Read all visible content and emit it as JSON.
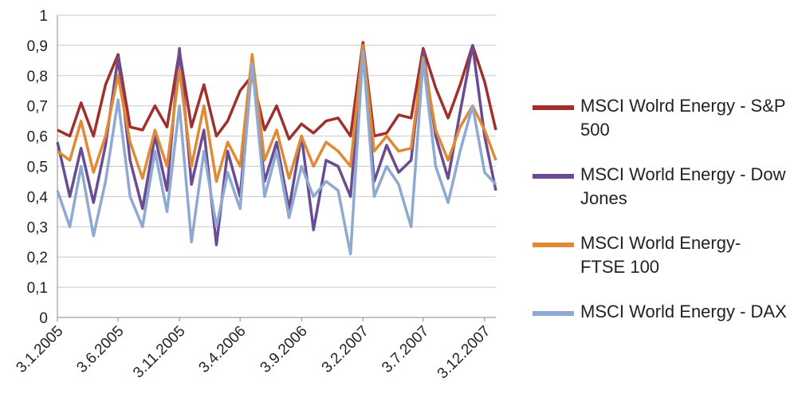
{
  "chart_data": {
    "type": "line",
    "title": "",
    "xlabel": "",
    "ylabel": "",
    "ylim": [
      0,
      1
    ],
    "y_ticks": [
      "0",
      "0,1",
      "0,2",
      "0,3",
      "0,4",
      "0,5",
      "0,6",
      "0,7",
      "0,8",
      "0,9",
      "1"
    ],
    "y_tick_values": [
      0,
      0.1,
      0.2,
      0.3,
      0.4,
      0.5,
      0.6,
      0.7,
      0.8,
      0.9,
      1.0
    ],
    "x_ticks": [
      "3.1.2005",
      "3.6.2005",
      "3.11.2005",
      "3.4.2006",
      "3.9.2006",
      "3.2.2007",
      "3.7.2007",
      "3.12.2007"
    ],
    "x_range": [
      "3.1.2005",
      "31.12.2007"
    ],
    "grid": "horizontal",
    "legend_position": "right",
    "series": [
      {
        "name": "MSCI Wolrd Energy - S&P 500",
        "color": "#A0302E",
        "x": [
          "3.1.2005",
          "3.2.2005",
          "3.3.2005",
          "3.4.2005",
          "3.5.2005",
          "3.6.2005",
          "3.7.2005",
          "3.8.2005",
          "3.9.2005",
          "3.10.2005",
          "3.11.2005",
          "3.12.2005",
          "3.1.2006",
          "3.2.2006",
          "3.3.2006",
          "3.4.2006",
          "3.5.2006",
          "3.6.2006",
          "3.7.2006",
          "3.8.2006",
          "3.9.2006",
          "3.10.2006",
          "3.11.2006",
          "3.12.2006",
          "3.1.2007",
          "3.2.2007",
          "3.3.2007",
          "3.4.2007",
          "3.5.2007",
          "3.6.2007",
          "3.7.2007",
          "3.8.2007",
          "3.9.2007",
          "3.10.2007",
          "3.11.2007",
          "3.12.2007",
          "31.12.2007"
        ],
        "y": [
          0.62,
          0.6,
          0.71,
          0.6,
          0.77,
          0.87,
          0.63,
          0.62,
          0.7,
          0.63,
          0.88,
          0.63,
          0.77,
          0.6,
          0.65,
          0.75,
          0.8,
          0.62,
          0.7,
          0.59,
          0.64,
          0.61,
          0.65,
          0.66,
          0.6,
          0.91,
          0.6,
          0.61,
          0.67,
          0.66,
          0.89,
          0.76,
          0.66,
          0.77,
          0.9,
          0.78,
          0.62
        ]
      },
      {
        "name": "MSCI World Energy - Dow Jones",
        "color": "#6A4C93",
        "x": [
          "3.1.2005",
          "3.2.2005",
          "3.3.2005",
          "3.4.2005",
          "3.5.2005",
          "3.6.2005",
          "3.7.2005",
          "3.8.2005",
          "3.9.2005",
          "3.10.2005",
          "3.11.2005",
          "3.12.2005",
          "3.1.2006",
          "3.2.2006",
          "3.3.2006",
          "3.4.2006",
          "3.5.2006",
          "3.6.2006",
          "3.7.2006",
          "3.8.2006",
          "3.9.2006",
          "3.10.2006",
          "3.11.2006",
          "3.12.2006",
          "3.1.2007",
          "3.2.2007",
          "3.3.2007",
          "3.4.2007",
          "3.5.2007",
          "3.6.2007",
          "3.7.2007",
          "3.8.2007",
          "3.9.2007",
          "3.10.2007",
          "3.11.2007",
          "3.12.2007",
          "31.12.2007"
        ],
        "y": [
          0.58,
          0.4,
          0.56,
          0.38,
          0.57,
          0.86,
          0.52,
          0.36,
          0.6,
          0.42,
          0.89,
          0.44,
          0.62,
          0.24,
          0.55,
          0.4,
          0.85,
          0.45,
          0.58,
          0.36,
          0.6,
          0.29,
          0.52,
          0.5,
          0.4,
          0.9,
          0.45,
          0.57,
          0.48,
          0.52,
          0.88,
          0.6,
          0.46,
          0.68,
          0.9,
          0.6,
          0.42
        ]
      },
      {
        "name": "MSCI World Energy- FTSE 100",
        "color": "#E08A35",
        "x": [
          "3.1.2005",
          "3.2.2005",
          "3.3.2005",
          "3.4.2005",
          "3.5.2005",
          "3.6.2005",
          "3.7.2005",
          "3.8.2005",
          "3.9.2005",
          "3.10.2005",
          "3.11.2005",
          "3.12.2005",
          "3.1.2006",
          "3.2.2006",
          "3.3.2006",
          "3.4.2006",
          "3.5.2006",
          "3.6.2006",
          "3.7.2006",
          "3.8.2006",
          "3.9.2006",
          "3.10.2006",
          "3.11.2006",
          "3.12.2006",
          "3.1.2007",
          "3.2.2007",
          "3.3.2007",
          "3.4.2007",
          "3.5.2007",
          "3.6.2007",
          "3.7.2007",
          "3.8.2007",
          "3.9.2007",
          "3.10.2007",
          "3.11.2007",
          "3.12.2007",
          "31.12.2007"
        ],
        "y": [
          0.55,
          0.52,
          0.65,
          0.48,
          0.6,
          0.8,
          0.58,
          0.46,
          0.62,
          0.5,
          0.82,
          0.5,
          0.7,
          0.45,
          0.58,
          0.5,
          0.87,
          0.52,
          0.62,
          0.46,
          0.6,
          0.5,
          0.58,
          0.55,
          0.5,
          0.9,
          0.55,
          0.6,
          0.55,
          0.56,
          0.86,
          0.62,
          0.52,
          0.63,
          0.7,
          0.62,
          0.52
        ]
      },
      {
        "name": "MSCI World Energy - DAX",
        "color": "#8EA9D2",
        "x": [
          "3.1.2005",
          "3.2.2005",
          "3.3.2005",
          "3.4.2005",
          "3.5.2005",
          "3.6.2005",
          "3.7.2005",
          "3.8.2005",
          "3.9.2005",
          "3.10.2005",
          "3.11.2005",
          "3.12.2005",
          "3.1.2006",
          "3.2.2006",
          "3.3.2006",
          "3.4.2006",
          "3.5.2006",
          "3.6.2006",
          "3.7.2006",
          "3.8.2006",
          "3.9.2006",
          "3.10.2006",
          "3.11.2006",
          "3.12.2006",
          "3.1.2007",
          "3.2.2007",
          "3.3.2007",
          "3.4.2007",
          "3.5.2007",
          "3.6.2007",
          "3.7.2007",
          "3.8.2007",
          "3.9.2007",
          "3.10.2007",
          "3.11.2007",
          "3.12.2007",
          "31.12.2007"
        ],
        "y": [
          0.42,
          0.3,
          0.5,
          0.27,
          0.45,
          0.72,
          0.4,
          0.3,
          0.55,
          0.35,
          0.7,
          0.25,
          0.55,
          0.3,
          0.48,
          0.36,
          0.84,
          0.4,
          0.55,
          0.33,
          0.5,
          0.4,
          0.45,
          0.42,
          0.21,
          0.88,
          0.4,
          0.5,
          0.44,
          0.3,
          0.85,
          0.5,
          0.38,
          0.55,
          0.7,
          0.48,
          0.44
        ]
      }
    ]
  }
}
